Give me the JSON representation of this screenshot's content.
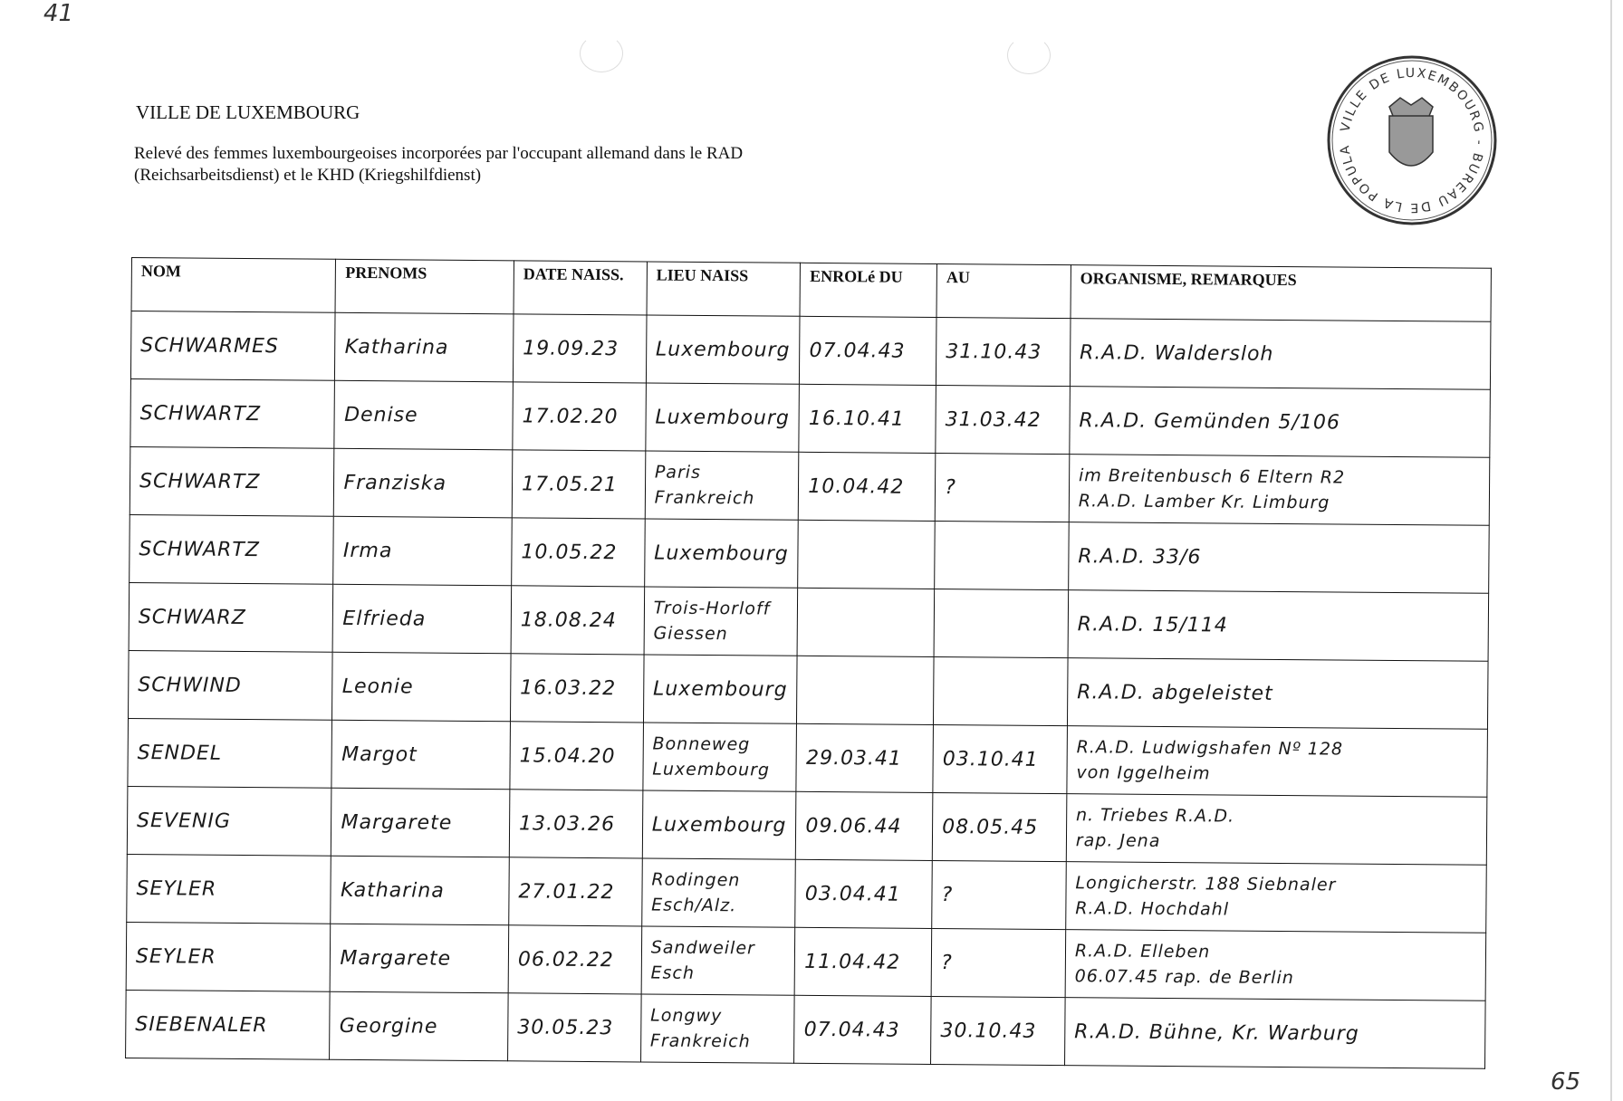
{
  "page_number_top": "41",
  "page_number_bottom": "65",
  "header": {
    "ville": "VILLE DE LUXEMBOURG",
    "subtitle": "Relevé des femmes luxembourgeoises incorporées par l'occupant allemand dans le RAD (Reichsarbeitsdienst) et le KHD (Kriegshilfdienst)"
  },
  "stamp": {
    "outer": "VILLE DE LUXEMBOURG",
    "inner": "BUREAU DE LA POPULATION"
  },
  "table": {
    "columns": [
      "NOM",
      "PRENOMS",
      "DATE NAISS.",
      "LIEU NAISS",
      "ENROLé DU",
      "AU",
      "ORGANISME, REMARQUES"
    ],
    "rows": [
      {
        "nom": "SCHWARMES",
        "prenoms": "Katharina",
        "date": "19.09.23",
        "lieu": [
          "Luxembourg"
        ],
        "du": "07.04.43",
        "au": "31.10.43",
        "remarques": [
          "R.A.D. Waldersloh"
        ]
      },
      {
        "nom": "SCHWARTZ",
        "prenoms": "Denise",
        "date": "17.02.20",
        "lieu": [
          "Luxembourg"
        ],
        "du": "16.10.41",
        "au": "31.03.42",
        "remarques": [
          "R.A.D. Gemünden 5/106"
        ]
      },
      {
        "nom": "SCHWARTZ",
        "prenoms": "Franziska",
        "date": "17.05.21",
        "lieu": [
          "Paris",
          "Frankreich"
        ],
        "du": "10.04.42",
        "au": "?",
        "remarques": [
          "im Breitenbusch 6 Eltern R2",
          "R.A.D. Lamber Kr. Limburg"
        ]
      },
      {
        "nom": "SCHWARTZ",
        "prenoms": "Irma",
        "date": "10.05.22",
        "lieu": [
          "Luxembourg"
        ],
        "du": "",
        "au": "",
        "remarques": [
          "R.A.D. 33/6"
        ]
      },
      {
        "nom": "SCHWARZ",
        "prenoms": "Elfrieda",
        "date": "18.08.24",
        "lieu": [
          "Trois-Horloff",
          "Giessen"
        ],
        "du": "",
        "au": "",
        "remarques": [
          "R.A.D. 15/114"
        ]
      },
      {
        "nom": "SCHWIND",
        "prenoms": "Leonie",
        "date": "16.03.22",
        "lieu": [
          "Luxembourg"
        ],
        "du": "",
        "au": "",
        "remarques": [
          "R.A.D. abgeleistet"
        ]
      },
      {
        "nom": "SENDEL",
        "prenoms": "Margot",
        "date": "15.04.20",
        "lieu": [
          "Bonneweg",
          "Luxembourg"
        ],
        "du": "29.03.41",
        "au": "03.10.41",
        "remarques": [
          "R.A.D. Ludwigshafen Nº 128",
          "von Iggelheim"
        ]
      },
      {
        "nom": "SEVENIG",
        "prenoms": "Margarete",
        "date": "13.03.26",
        "lieu": [
          "Luxembourg"
        ],
        "du": "09.06.44",
        "au": "08.05.45",
        "remarques": [
          "n. Triebes R.A.D.",
          "rap. Jena"
        ]
      },
      {
        "nom": "SEYLER",
        "prenoms": "Katharina",
        "date": "27.01.22",
        "lieu": [
          "Rodingen",
          "Esch/Alz."
        ],
        "du": "03.04.41",
        "au": "?",
        "remarques": [
          "Longicherstr. 188 Siebnaler",
          "R.A.D. Hochdahl"
        ]
      },
      {
        "nom": "SEYLER",
        "prenoms": "Margarete",
        "date": "06.02.22",
        "lieu": [
          "Sandweiler",
          "Esch"
        ],
        "du": "11.04.42",
        "au": "?",
        "remarques": [
          "R.A.D. Elleben",
          "06.07.45 rap. de Berlin"
        ]
      },
      {
        "nom": "SIEBENALER",
        "prenoms": "Georgine",
        "date": "30.05.23",
        "lieu": [
          "Longwy",
          "Frankreich"
        ],
        "du": "07.04.43",
        "au": "30.10.43",
        "remarques": [
          "R.A.D. Bühne, Kr. Warburg"
        ]
      }
    ]
  }
}
